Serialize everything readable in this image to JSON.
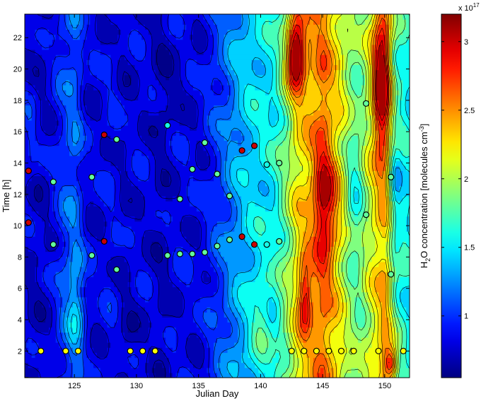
{
  "chart_data": {
    "type": "heatmap",
    "subtype": "filled-contour",
    "title": "",
    "xlabel": "Julian Day",
    "ylabel": "Time [h]",
    "xlim": [
      121,
      152
    ],
    "ylim": [
      0.3,
      23.5
    ],
    "xticks": [
      125,
      130,
      135,
      140,
      145,
      150
    ],
    "yticks": [
      2,
      4,
      6,
      8,
      10,
      12,
      14,
      16,
      18,
      20,
      22
    ],
    "colorbar": {
      "label_prefix": "H",
      "label_sub1": "2",
      "label_mid": "O concentration [molecules cm",
      "label_sup": "-3",
      "label_suffix": "]",
      "multiplier_base": "x 10",
      "multiplier_exp": "17",
      "range": [
        0.55,
        3.2
      ],
      "ticks": [
        "1",
        "1.5",
        "2",
        "2.5",
        "3"
      ],
      "tick_values": [
        1,
        1.5,
        2,
        2.5,
        3
      ],
      "colormap": "jet"
    },
    "contour_levels": [
      0.6,
      0.75,
      0.9,
      1.05,
      1.2,
      1.35,
      1.5,
      1.65,
      1.8,
      1.95,
      2.1,
      2.25,
      2.4,
      2.55,
      2.7,
      2.85,
      3.0
    ],
    "day_background": [
      {
        "day": 121,
        "v": 0.78
      },
      {
        "day": 122,
        "v": 0.72
      },
      {
        "day": 123,
        "v": 0.8
      },
      {
        "day": 124,
        "v": 1.0
      },
      {
        "day": 125,
        "v": 1.15
      },
      {
        "day": 126,
        "v": 0.82
      },
      {
        "day": 127,
        "v": 0.8
      },
      {
        "day": 128,
        "v": 0.88
      },
      {
        "day": 129,
        "v": 0.75
      },
      {
        "day": 130,
        "v": 0.82
      },
      {
        "day": 131,
        "v": 0.8
      },
      {
        "day": 132,
        "v": 0.7
      },
      {
        "day": 133,
        "v": 0.82
      },
      {
        "day": 134,
        "v": 0.85
      },
      {
        "day": 135,
        "v": 0.8
      },
      {
        "day": 136,
        "v": 0.95
      },
      {
        "day": 137,
        "v": 1.1
      },
      {
        "day": 138,
        "v": 1.3
      },
      {
        "day": 139,
        "v": 1.45
      },
      {
        "day": 140,
        "v": 1.5
      },
      {
        "day": 141,
        "v": 1.55
      },
      {
        "day": 142,
        "v": 1.85
      },
      {
        "day": 143,
        "v": 2.25
      },
      {
        "day": 144,
        "v": 2.35
      },
      {
        "day": 145,
        "v": 2.6
      },
      {
        "day": 146,
        "v": 2.3
      },
      {
        "day": 147,
        "v": 2.0
      },
      {
        "day": 148,
        "v": 1.85
      },
      {
        "day": 149,
        "v": 2.15
      },
      {
        "day": 150,
        "v": 2.45
      },
      {
        "day": 151,
        "v": 1.75
      },
      {
        "day": 152,
        "v": 1.55
      }
    ],
    "hotspots": [
      {
        "x": 142.8,
        "y": 21,
        "sx": 0.7,
        "sy": 2.2,
        "a": 1.3
      },
      {
        "x": 143.6,
        "y": 5.5,
        "sx": 0.5,
        "sy": 2.3,
        "a": 0.75
      },
      {
        "x": 145.2,
        "y": 11.5,
        "sx": 0.9,
        "sy": 3.5,
        "a": 0.6
      },
      {
        "x": 149.7,
        "y": 19,
        "sx": 0.6,
        "sy": 4.5,
        "a": 1.0
      },
      {
        "x": 150.5,
        "y": 1.2,
        "sx": 0.5,
        "sy": 1.0,
        "a": 0.9
      },
      {
        "x": 147.5,
        "y": 12,
        "sx": 0.6,
        "sy": 5,
        "a": -0.3
      },
      {
        "x": 150.8,
        "y": 12,
        "sx": 0.6,
        "sy": 4,
        "a": -0.4
      },
      {
        "x": 125.2,
        "y": 5,
        "sx": 0.8,
        "sy": 3,
        "a": 0.35
      },
      {
        "x": 121.5,
        "y": 16,
        "sx": 0.6,
        "sy": 3.5,
        "a": 0.2
      },
      {
        "x": 133,
        "y": 19,
        "sx": 1.2,
        "sy": 3,
        "a": -0.12
      },
      {
        "x": 129.5,
        "y": 3,
        "sx": 0.7,
        "sy": 2,
        "a": -0.12
      },
      {
        "x": 140,
        "y": 4,
        "sx": 0.8,
        "sy": 3,
        "a": 0.25
      }
    ],
    "points": [
      {
        "day": 121.3,
        "hour": 13.5,
        "value": 3.0
      },
      {
        "day": 121.3,
        "hour": 10.2,
        "value": 3.0
      },
      {
        "day": 122.3,
        "hour": 2.0,
        "value": 2.2
      },
      {
        "day": 123.3,
        "hour": 12.8,
        "value": 1.8
      },
      {
        "day": 123.3,
        "hour": 8.8,
        "value": 1.8
      },
      {
        "day": 124.3,
        "hour": 2.0,
        "value": 2.2
      },
      {
        "day": 125.3,
        "hour": 2.0,
        "value": 2.2
      },
      {
        "day": 126.4,
        "hour": 13.1,
        "value": 1.8
      },
      {
        "day": 126.4,
        "hour": 8.1,
        "value": 1.8
      },
      {
        "day": 127.4,
        "hour": 15.8,
        "value": 3.0
      },
      {
        "day": 127.4,
        "hour": 9.0,
        "value": 3.0
      },
      {
        "day": 128.4,
        "hour": 15.5,
        "value": 1.8
      },
      {
        "day": 128.4,
        "hour": 7.2,
        "value": 1.8
      },
      {
        "day": 129.5,
        "hour": 2.0,
        "value": 2.2
      },
      {
        "day": 130.5,
        "hour": 2.0,
        "value": 2.2
      },
      {
        "day": 131.5,
        "hour": 2.0,
        "value": 2.2
      },
      {
        "day": 132.5,
        "hour": 16.4,
        "value": 1.6
      },
      {
        "day": 132.5,
        "hour": 8.1,
        "value": 1.8
      },
      {
        "day": 133.5,
        "hour": 11.7,
        "value": 1.8
      },
      {
        "day": 133.5,
        "hour": 8.2,
        "value": 1.8
      },
      {
        "day": 134.5,
        "hour": 13.6,
        "value": 1.8
      },
      {
        "day": 134.5,
        "hour": 8.2,
        "value": 1.8
      },
      {
        "day": 135.5,
        "hour": 15.3,
        "value": 1.8
      },
      {
        "day": 135.5,
        "hour": 8.3,
        "value": 1.8
      },
      {
        "day": 136.5,
        "hour": 13.3,
        "value": 1.8
      },
      {
        "day": 136.5,
        "hour": 8.7,
        "value": 1.8
      },
      {
        "day": 137.5,
        "hour": 11.9,
        "value": 1.8
      },
      {
        "day": 137.5,
        "hour": 9.1,
        "value": 1.8
      },
      {
        "day": 138.5,
        "hour": 14.8,
        "value": 3.0
      },
      {
        "day": 138.5,
        "hour": 9.3,
        "value": 3.0
      },
      {
        "day": 139.5,
        "hour": 15.1,
        "value": 3.0
      },
      {
        "day": 139.5,
        "hour": 8.8,
        "value": 3.0
      },
      {
        "day": 140.5,
        "hour": 13.9,
        "value": 1.6
      },
      {
        "day": 140.5,
        "hour": 8.8,
        "value": 1.6
      },
      {
        "day": 141.5,
        "hour": 14.0,
        "value": 1.8
      },
      {
        "day": 141.5,
        "hour": 9.0,
        "value": 1.8
      },
      {
        "day": 142.5,
        "hour": 2.0,
        "value": 2.2
      },
      {
        "day": 143.5,
        "hour": 2.0,
        "value": 2.2
      },
      {
        "day": 144.5,
        "hour": 2.0,
        "value": 2.2
      },
      {
        "day": 145.5,
        "hour": 2.0,
        "value": 2.2
      },
      {
        "day": 146.5,
        "hour": 2.0,
        "value": 2.2
      },
      {
        "day": 147.5,
        "hour": 2.0,
        "value": 2.2
      },
      {
        "day": 148.5,
        "hour": 17.8,
        "value": 1.8
      },
      {
        "day": 148.5,
        "hour": 10.7,
        "value": 1.8
      },
      {
        "day": 149.5,
        "hour": 2.0,
        "value": 2.2
      },
      {
        "day": 150.5,
        "hour": 13.1,
        "value": 1.8
      },
      {
        "day": 150.5,
        "hour": 6.9,
        "value": 1.8
      },
      {
        "day": 151.5,
        "hour": 2.0,
        "value": 2.2
      }
    ]
  }
}
